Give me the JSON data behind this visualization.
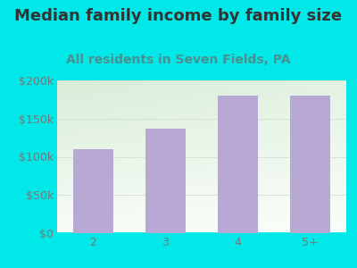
{
  "title": "Median family income by family size",
  "subtitle": "All residents in Seven Fields, PA",
  "categories": [
    "2",
    "3",
    "4",
    "5+"
  ],
  "values": [
    110000,
    137000,
    180000,
    180000
  ],
  "bar_color": "#b8a9d4",
  "title_color": "#333333",
  "subtitle_color": "#4a9090",
  "tick_color": "#777777",
  "bg_color": "#00e8e8",
  "ylim": [
    0,
    200000
  ],
  "yticks": [
    0,
    50000,
    100000,
    150000,
    200000
  ],
  "ytick_labels": [
    "$0",
    "$50k",
    "$100k",
    "$150k",
    "$200k"
  ],
  "title_fontsize": 13,
  "subtitle_fontsize": 10,
  "tick_fontsize": 9,
  "grad_top": "#d8edd8",
  "grad_bottom": "#f5fbf5"
}
